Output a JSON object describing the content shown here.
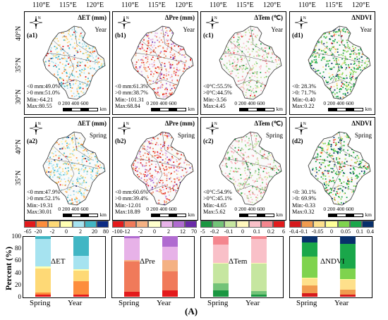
{
  "longitudes": [
    "110°E",
    "115°E",
    "120°E"
  ],
  "latitudes": [
    "40°N",
    "35°N",
    "30°N"
  ],
  "panels": [
    {
      "id": "a1",
      "title": "ΔET (mm)",
      "season": "Year",
      "line1": "<0 mm:49.0%",
      "line2": ">0 mm:51.0%",
      "line3": "Min:-64.21",
      "line4": "Max:80.55",
      "palette": "et"
    },
    {
      "id": "b1",
      "title": "ΔPre (mm)",
      "season": "Year",
      "line1": "<0 mm:61.3%",
      "line2": ">0 mm:38.7%",
      "line3": "Min:-101.31",
      "line4": "Max:68.84",
      "palette": "pre"
    },
    {
      "id": "c1",
      "title": "ΔTem (℃)",
      "season": "Year",
      "line1": "<0°C:55.5%",
      "line2": ">0°C:44.5%",
      "line3": "Min:-3.56",
      "line4": "Max:4.45",
      "palette": "tem"
    },
    {
      "id": "d1",
      "title": "ΔNDVI",
      "season": "Year",
      "line1": "<0: 28.3%",
      "line2": ">0: 71.7%",
      "line3": "Min:-0.40",
      "line4": "Max:0.22",
      "palette": "ndvi"
    },
    {
      "id": "a2",
      "title": "ΔET (mm)",
      "season": "Spring",
      "line1": "<0 mm:47.9%",
      "line2": ">0 mm:52.1%",
      "line3": "Min:-19.31",
      "line4": "Max:30.01",
      "palette": "et"
    },
    {
      "id": "b2",
      "title": "ΔPre (mm)",
      "season": "Spring",
      "line1": "<0 mm:60.6%",
      "line2": ">0 mm:39.4%",
      "line3": "Min:-12.01",
      "line4": "Max:18.89",
      "palette": "pre"
    },
    {
      "id": "c2",
      "title": "ΔTem (℃)",
      "season": "Spring",
      "line1": "<0°C:54.9%",
      "line2": ">0°C:45.1%",
      "line3": "Min:-4.65",
      "line4": "Max:5.62",
      "palette": "tem"
    },
    {
      "id": "d2",
      "title": "ΔNDVI",
      "season": "Spring",
      "line1": "<0: 30.1%",
      "line2": ">0: 69.9%",
      "line3": "Min:-0.33",
      "line4": "Max:0.32",
      "palette": "ndvi"
    }
  ],
  "scale": {
    "ticks": "0  200 400 600",
    "unit": "km"
  },
  "legends": [
    {
      "id": "et",
      "ticks": [
        "-65",
        "-20",
        "-2",
        "0",
        "2",
        "20",
        "80"
      ],
      "colors": [
        "#e31a1c",
        "#fd8d3c",
        "#fed976",
        "#ffffb2",
        "#a6e3f0",
        "#41b6c4",
        "#0c2c84"
      ]
    },
    {
      "id": "pre",
      "ticks": [
        "-100",
        "-12",
        "-2",
        "0",
        "2",
        "12",
        "70"
      ],
      "colors": [
        "#e31a1c",
        "#f07a5a",
        "#f4b183",
        "#ffffcc",
        "#e7b2e8",
        "#b06bd0",
        "#6a2aa8"
      ]
    },
    {
      "id": "tem",
      "ticks": [
        "-5",
        "-0.2",
        "-0.1",
        "0",
        "0.1",
        "0.2",
        "6"
      ],
      "colors": [
        "#1a9641",
        "#73c378",
        "#c6e6a0",
        "#fff7bc",
        "#f9c0c8",
        "#f4868e",
        "#e31a1c"
      ]
    },
    {
      "id": "ndvi",
      "ticks": [
        "-0.4",
        "-0.1",
        "-0.05",
        "0",
        "0.05",
        "0.1",
        "0.4"
      ],
      "colors": [
        "#d7191c",
        "#f09b4e",
        "#fee08b",
        "#ffff99",
        "#7fd34e",
        "#1aa74a",
        "#08306b"
      ]
    }
  ],
  "y_axis_title": "Percent (%)",
  "y_ticks": [
    "100",
    "80",
    "60",
    "40",
    "20",
    "0"
  ],
  "caption": "(A)",
  "chart_data": [
    {
      "type": "bar",
      "stacked": true,
      "title": "ΔET",
      "categories": [
        "Spring",
        "Year"
      ],
      "ylim": [
        0,
        100
      ],
      "ylabel": "Percent (%)",
      "series": [
        {
          "values": [
            4,
            3
          ],
          "color": "#e31a1c"
        },
        {
          "values": [
            3,
            23
          ],
          "color": "#fd8d3c"
        },
        {
          "values": [
            40,
            17
          ],
          "color": "#fed976"
        },
        {
          "values": [
            3,
            2
          ],
          "color": "#ffffb2"
        },
        {
          "values": [
            45,
            22
          ],
          "color": "#a6e3f0"
        },
        {
          "values": [
            5,
            33
          ],
          "color": "#41b6c4"
        },
        {
          "values": [
            0,
            0
          ],
          "color": "#0c2c84"
        }
      ]
    },
    {
      "type": "bar",
      "stacked": true,
      "title": "ΔPre",
      "categories": [
        "Spring",
        "Year"
      ],
      "ylim": [
        0,
        100
      ],
      "series": [
        {
          "values": [
            8,
            10
          ],
          "color": "#e31a1c"
        },
        {
          "values": [
            50,
            32
          ],
          "color": "#f07a5a"
        },
        {
          "values": [
            2,
            18
          ],
          "color": "#f4b183"
        },
        {
          "values": [
            0,
            1
          ],
          "color": "#ffffcc"
        },
        {
          "values": [
            36,
            22
          ],
          "color": "#e7b2e8"
        },
        {
          "values": [
            4,
            17
          ],
          "color": "#b06bd0"
        },
        {
          "values": [
            0,
            0
          ],
          "color": "#6a2aa8"
        }
      ]
    },
    {
      "type": "bar",
      "stacked": true,
      "title": "ΔTem",
      "categories": [
        "Spring",
        "Year"
      ],
      "ylim": [
        0,
        100
      ],
      "series": [
        {
          "values": [
            10,
            4
          ],
          "color": "#1a9641"
        },
        {
          "values": [
            12,
            5
          ],
          "color": "#73c378"
        },
        {
          "values": [
            33,
            46
          ],
          "color": "#c6e6a0"
        },
        {
          "values": [
            1,
            1
          ],
          "color": "#fff7bc"
        },
        {
          "values": [
            30,
            39
          ],
          "color": "#f9c0c8"
        },
        {
          "values": [
            14,
            5
          ],
          "color": "#f4868e"
        },
        {
          "values": [
            0,
            0
          ],
          "color": "#e31a1c"
        }
      ]
    },
    {
      "type": "bar",
      "stacked": true,
      "title": "ΔNDVI",
      "categories": [
        "Spring",
        "Year"
      ],
      "ylim": [
        0,
        100
      ],
      "series": [
        {
          "values": [
            6,
            3
          ],
          "color": "#d7191c"
        },
        {
          "values": [
            13,
            9
          ],
          "color": "#f09b4e"
        },
        {
          "values": [
            11,
            16
          ],
          "color": "#fee08b"
        },
        {
          "values": [
            1,
            1
          ],
          "color": "#ffff99"
        },
        {
          "values": [
            35,
            17
          ],
          "color": "#7fd34e"
        },
        {
          "values": [
            24,
            41
          ],
          "color": "#1aa74a"
        },
        {
          "values": [
            10,
            13
          ],
          "color": "#08306b"
        }
      ]
    }
  ]
}
